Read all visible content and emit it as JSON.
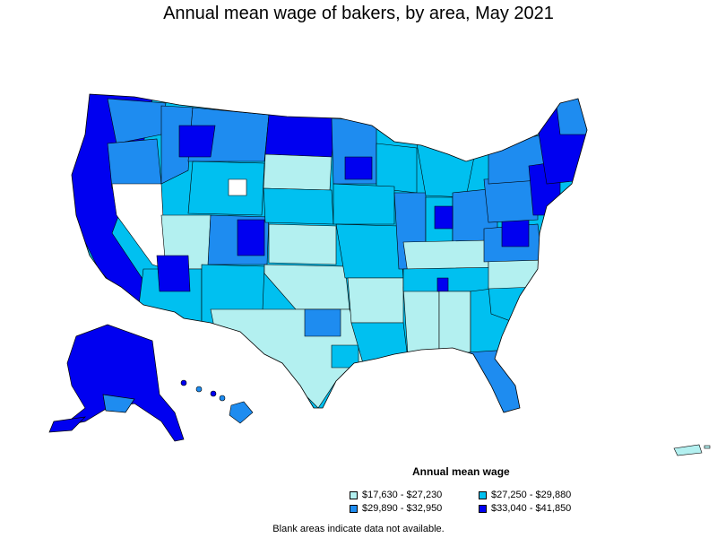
{
  "title": "Annual mean wage of bakers, by area, May 2021",
  "legend": {
    "title": "Annual mean wage",
    "items": [
      {
        "label": "$17,630 - $27,230",
        "color": "#b3f0f0"
      },
      {
        "label": "$27,250 - $29,880",
        "color": "#00c0f0"
      },
      {
        "label": "$29,890 - $32,950",
        "color": "#1e8cf0"
      },
      {
        "label": "$33,040 - $41,850",
        "color": "#0000f0"
      }
    ]
  },
  "footnote": "Blank areas indicate data not available.",
  "colors": {
    "blank": "#ffffff",
    "border": "#000000"
  }
}
